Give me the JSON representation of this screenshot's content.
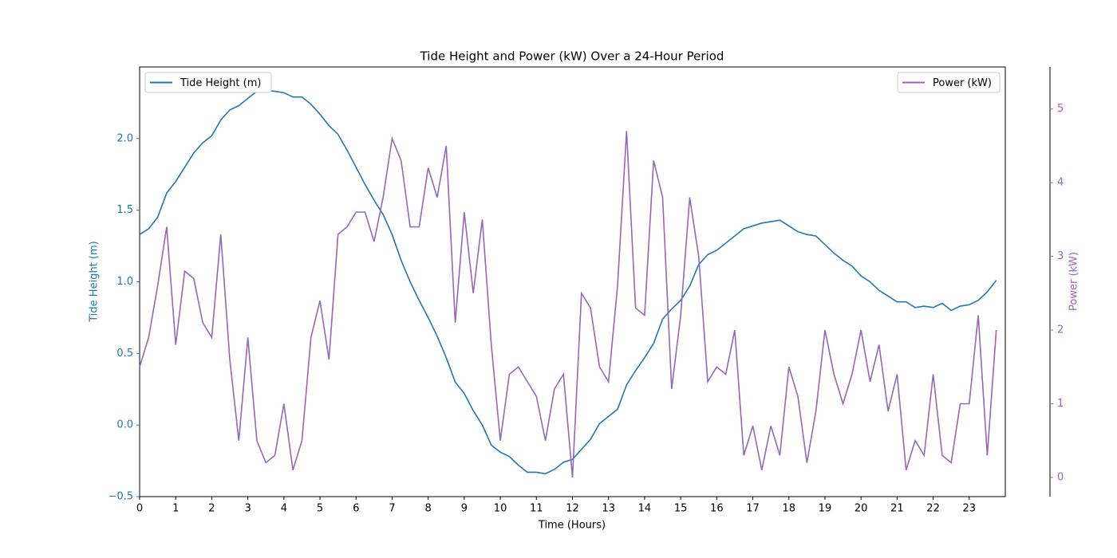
{
  "chart_data": {
    "type": "line",
    "title": "Tide Height and Power (kW) Over a 24-Hour Period",
    "x_label": "Time (Hours)",
    "y_label": "Tide Height (m)",
    "y2_label": "Power (kW)",
    "x": [
      0,
      0.25,
      0.5,
      0.75,
      1,
      1.25,
      1.5,
      1.75,
      2,
      2.25,
      2.5,
      2.75,
      3,
      3.25,
      3.5,
      3.75,
      4,
      4.25,
      4.5,
      4.75,
      5,
      5.25,
      5.5,
      5.75,
      6,
      6.25,
      6.5,
      6.75,
      7,
      7.25,
      7.5,
      7.75,
      8,
      8.25,
      8.5,
      8.75,
      9,
      9.25,
      9.5,
      9.75,
      10,
      10.25,
      10.5,
      10.75,
      11,
      11.25,
      11.5,
      11.75,
      12,
      12.25,
      12.5,
      12.75,
      13,
      13.25,
      13.5,
      13.75,
      14,
      14.25,
      14.5,
      14.75,
      15,
      15.25,
      15.5,
      15.75,
      16,
      16.25,
      16.5,
      16.75,
      17,
      17.25,
      17.5,
      17.75,
      18,
      18.25,
      18.5,
      18.75,
      19,
      19.25,
      19.5,
      19.75,
      20,
      20.25,
      20.5,
      20.75,
      21,
      21.25,
      21.5,
      21.75,
      22,
      22.25,
      22.5,
      22.75,
      23,
      23.25,
      23.5,
      23.75
    ],
    "series": [
      {
        "name": "Tide Height (m)",
        "color": "#1f77b4",
        "axis": "y",
        "legend": "upper left",
        "values": [
          1.33,
          1.37,
          1.45,
          1.62,
          1.7,
          1.8,
          1.9,
          1.97,
          2.02,
          2.13,
          2.2,
          2.23,
          2.28,
          2.33,
          2.34,
          2.33,
          2.32,
          2.29,
          2.29,
          2.24,
          2.17,
          2.09,
          2.03,
          1.92,
          1.8,
          1.68,
          1.57,
          1.47,
          1.33,
          1.15,
          1.0,
          0.87,
          0.75,
          0.62,
          0.47,
          0.3,
          0.22,
          0.1,
          0.0,
          -0.14,
          -0.19,
          -0.22,
          -0.28,
          -0.33,
          -0.33,
          -0.34,
          -0.31,
          -0.26,
          -0.24,
          -0.17,
          -0.1,
          0.01,
          0.06,
          0.11,
          0.28,
          0.38,
          0.47,
          0.57,
          0.74,
          0.81,
          0.87,
          0.97,
          1.12,
          1.19,
          1.22,
          1.27,
          1.32,
          1.37,
          1.39,
          1.41,
          1.42,
          1.43,
          1.39,
          1.35,
          1.33,
          1.32,
          1.26,
          1.2,
          1.15,
          1.11,
          1.04,
          1.0,
          0.94,
          0.9,
          0.86,
          0.86,
          0.82,
          0.83,
          0.82,
          0.85,
          0.8,
          0.83,
          0.84,
          0.87,
          0.93,
          1.01
        ]
      },
      {
        "name": "Power (kW)",
        "color": "#9467bd",
        "axis": "y2",
        "legend": "upper right",
        "values": [
          1.5,
          1.9,
          2.6,
          3.4,
          1.8,
          2.8,
          2.7,
          2.1,
          1.9,
          3.3,
          1.6,
          0.5,
          1.9,
          0.5,
          0.2,
          0.3,
          1.0,
          0.1,
          0.5,
          1.9,
          2.4,
          1.6,
          3.3,
          3.4,
          3.6,
          3.6,
          3.2,
          3.8,
          4.6,
          4.3,
          3.4,
          3.4,
          4.2,
          3.8,
          4.5,
          2.1,
          3.6,
          2.5,
          3.5,
          1.8,
          0.5,
          1.4,
          1.5,
          1.3,
          1.1,
          0.5,
          1.2,
          1.4,
          0.0,
          2.5,
          2.3,
          1.5,
          1.3,
          2.6,
          4.7,
          2.3,
          2.2,
          4.3,
          3.8,
          1.2,
          2.2,
          3.8,
          3.0,
          1.3,
          1.5,
          1.4,
          2.0,
          0.3,
          0.7,
          0.1,
          0.7,
          0.3,
          1.5,
          1.1,
          0.2,
          0.9,
          2.0,
          1.4,
          1.0,
          1.4,
          2.0,
          1.3,
          1.8,
          0.9,
          1.4,
          0.1,
          0.5,
          0.3,
          1.4,
          0.3,
          0.2,
          1.0,
          1.0,
          2.2,
          0.3,
          2.0
        ]
      }
    ],
    "xlim": [
      0,
      24
    ],
    "xticks": [
      0,
      1,
      2,
      3,
      4,
      5,
      6,
      7,
      8,
      9,
      10,
      11,
      12,
      13,
      14,
      15,
      16,
      17,
      18,
      19,
      20,
      21,
      22,
      23
    ],
    "ylim": [
      -0.5,
      2.5
    ],
    "yticks": [
      {
        "value": -0.5,
        "label": "−0.5"
      },
      {
        "value": 0,
        "label": "0.0"
      },
      0.5,
      {
        "value": 1,
        "label": "1.0"
      },
      1.5,
      {
        "value": 2,
        "label": "2.0"
      }
    ],
    "y2lim": [
      -0.26,
      5.57
    ],
    "y2ticks": [
      0,
      1,
      2,
      3,
      4,
      5
    ]
  }
}
